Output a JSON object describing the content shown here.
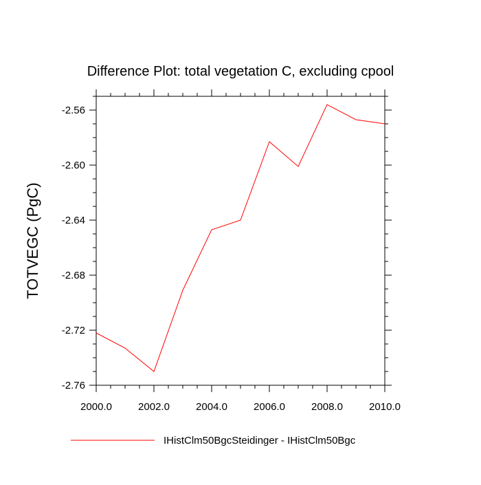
{
  "chart_data": {
    "type": "line",
    "title": "Difference Plot: total vegetation C, excluding cpool",
    "xlabel": "",
    "ylabel": "TOTVEGC  (PgC)",
    "xlim": [
      2000.0,
      2010.0
    ],
    "ylim": [
      -2.76,
      -2.55
    ],
    "x_ticks": [
      "2000.0",
      "2002.0",
      "2004.0",
      "2006.0",
      "2008.0",
      "2010.0"
    ],
    "y_ticks": [
      "-2.76",
      "-2.72",
      "-2.68",
      "-2.64",
      "-2.60",
      "-2.56"
    ],
    "grid": false,
    "legend_position": "bottom",
    "series": [
      {
        "name": "IHistClm50BgcSteidinger - IHistClm50Bgc",
        "color": "#ff0000",
        "x": [
          2000,
          2001,
          2002,
          2003,
          2004,
          2005,
          2006,
          2007,
          2008,
          2009,
          2010
        ],
        "values": [
          -2.722,
          -2.733,
          -2.75,
          -2.691,
          -2.647,
          -2.64,
          -2.583,
          -2.601,
          -2.556,
          -2.567,
          -2.57
        ]
      }
    ]
  }
}
